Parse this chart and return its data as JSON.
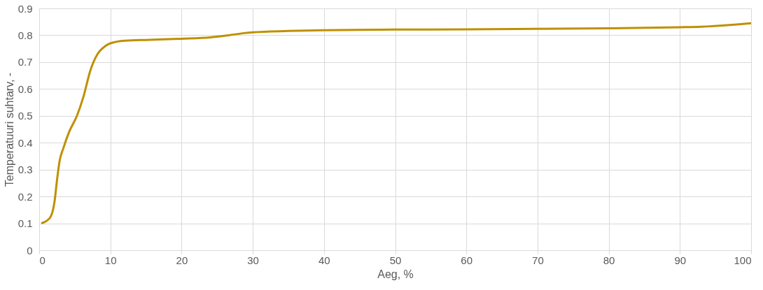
{
  "chart_data": {
    "type": "line",
    "xlabel": "Aeg, %",
    "ylabel": "Temperatuuri suhtarv, -",
    "x": [
      0.3,
      1.5,
      2.15,
      2.5,
      2.85,
      3.4,
      4.2,
      5.3,
      6.2,
      7.2,
      8.2,
      9.3,
      10,
      12,
      15.5,
      20,
      24,
      26.6,
      28.8,
      30,
      35,
      40,
      50,
      60,
      70,
      80,
      90,
      93,
      96,
      98,
      100
    ],
    "series": [
      {
        "color": "#bf9000",
        "values": [
          0.1,
          0.12,
          0.18,
          0.26,
          0.33,
          0.38,
          0.44,
          0.5,
          0.57,
          0.67,
          0.73,
          0.76,
          0.77,
          0.78,
          0.783,
          0.787,
          0.792,
          0.8,
          0.808,
          0.811,
          0.816,
          0.819,
          0.821,
          0.822,
          0.824,
          0.826,
          0.83,
          0.832,
          0.836,
          0.84,
          0.845
        ]
      }
    ],
    "xlim": [
      0,
      100
    ],
    "xticks": [
      0,
      10,
      20,
      30,
      40,
      50,
      60,
      70,
      80,
      90,
      100
    ],
    "ylim": [
      0,
      0.9
    ],
    "yticks": [
      0,
      0.1,
      0.2,
      0.3,
      0.4,
      0.5,
      0.6,
      0.7,
      0.8,
      0.9
    ],
    "grid": true,
    "marker": "none",
    "line_style": "solid"
  }
}
